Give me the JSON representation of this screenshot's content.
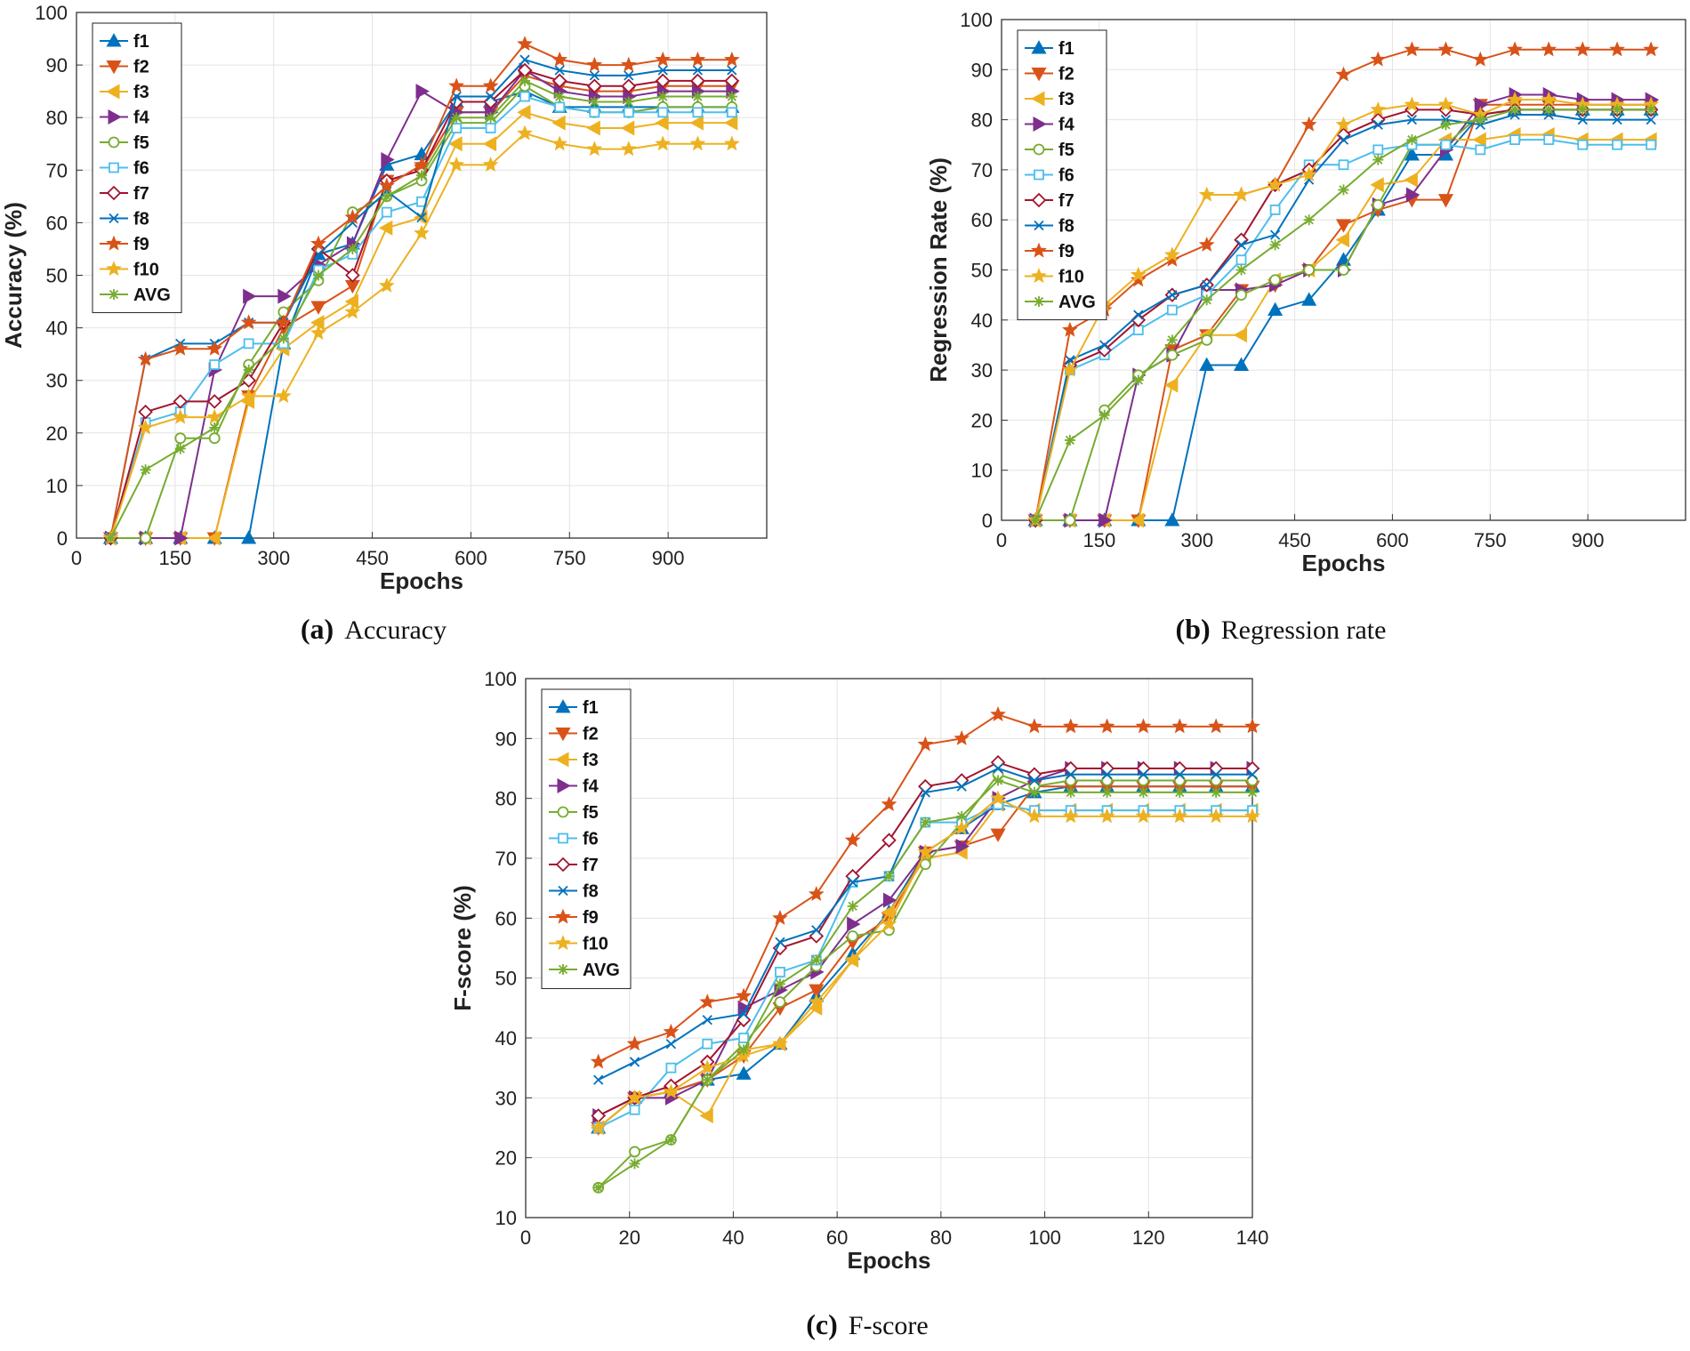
{
  "colors": {
    "f1": "#0072BD",
    "f2": "#D95319",
    "f3": "#EDB120",
    "f4": "#7E2F8E",
    "f5": "#77AC30",
    "f6": "#4DBEEE",
    "f7": "#A2142F",
    "f8": "#0072BD",
    "f9": "#D95319",
    "f10": "#EDB120",
    "AVG": "#77AC30"
  },
  "markers": {
    "f1": "tri-up",
    "f2": "tri-down",
    "f3": "tri-left",
    "f4": "tri-right",
    "f5": "circle",
    "f6": "square",
    "f7": "diamond",
    "f8": "cross",
    "f9": "star",
    "f10": "star",
    "AVG": "asterisk"
  },
  "chart_data": [
    {
      "id": "a",
      "type": "line",
      "caption_label": "(a)",
      "caption_text": "Accuracy",
      "xlabel": "Epochs",
      "ylabel": "Accuracy (%)",
      "xlim": [
        0,
        1050
      ],
      "ylim": [
        0,
        100
      ],
      "xticks": [
        0,
        150,
        300,
        450,
        600,
        750,
        900
      ],
      "yticks": [
        0,
        10,
        20,
        30,
        40,
        50,
        60,
        70,
        80,
        90,
        100
      ],
      "legend_position": "top-left",
      "x": [
        52,
        105,
        158,
        210,
        262,
        315,
        368,
        420,
        472,
        525,
        578,
        630,
        682,
        735,
        788,
        840,
        892,
        945,
        997
      ],
      "series": [
        {
          "name": "f1",
          "values": [
            0,
            0,
            0,
            0,
            0,
            37,
            54,
            56,
            71,
            73,
            83,
            83,
            85,
            82,
            82,
            82,
            82,
            82,
            82
          ]
        },
        {
          "name": "f2",
          "values": [
            0,
            0,
            0,
            0,
            27,
            40,
            44,
            48,
            68,
            70,
            81,
            81,
            88,
            86,
            85,
            85,
            86,
            86,
            86
          ]
        },
        {
          "name": "f3",
          "values": [
            0,
            0,
            0,
            0,
            26,
            36,
            41,
            45,
            59,
            61,
            75,
            75,
            81,
            79,
            78,
            78,
            79,
            79,
            79
          ]
        },
        {
          "name": "f4",
          "values": [
            0,
            0,
            0,
            32,
            46,
            46,
            52,
            56,
            72,
            85,
            81,
            81,
            89,
            85,
            84,
            84,
            85,
            85,
            85
          ]
        },
        {
          "name": "f5",
          "values": [
            0,
            0,
            19,
            19,
            33,
            43,
            49,
            62,
            65,
            68,
            79,
            79,
            86,
            82,
            81,
            81,
            82,
            82,
            82
          ]
        },
        {
          "name": "f6",
          "values": [
            0,
            22,
            24,
            33,
            37,
            37,
            51,
            54,
            62,
            64,
            78,
            78,
            84,
            82,
            81,
            81,
            81,
            81,
            81
          ]
        },
        {
          "name": "f7",
          "values": [
            0,
            24,
            26,
            26,
            30,
            41,
            55,
            50,
            68,
            70,
            83,
            83,
            89,
            87,
            86,
            86,
            87,
            87,
            87
          ]
        },
        {
          "name": "f8",
          "values": [
            0,
            34,
            37,
            37,
            41,
            41,
            54,
            60,
            66,
            61,
            84,
            84,
            91,
            89,
            88,
            88,
            89,
            89,
            89
          ]
        },
        {
          "name": "f9",
          "values": [
            0,
            34,
            36,
            36,
            41,
            41,
            56,
            61,
            67,
            71,
            86,
            86,
            94,
            91,
            90,
            90,
            91,
            91,
            91
          ]
        },
        {
          "name": "f10",
          "values": [
            0,
            21,
            23,
            23,
            27,
            27,
            39,
            43,
            48,
            58,
            71,
            71,
            77,
            75,
            74,
            74,
            75,
            75,
            75
          ]
        },
        {
          "name": "AVG",
          "values": [
            0,
            13,
            17,
            21,
            32,
            38,
            50,
            55,
            65,
            69,
            80,
            80,
            87,
            84,
            83,
            83,
            84,
            84,
            84
          ]
        }
      ]
    },
    {
      "id": "b",
      "type": "line",
      "caption_label": "(b)",
      "caption_text": "Regression rate",
      "xlabel": "Epochs",
      "ylabel": "Regression Rate (%)",
      "xlim": [
        0,
        1050
      ],
      "ylim": [
        0,
        100
      ],
      "xticks": [
        0,
        150,
        300,
        450,
        600,
        750,
        900
      ],
      "yticks": [
        0,
        10,
        20,
        30,
        40,
        50,
        60,
        70,
        80,
        90,
        100
      ],
      "legend_position": "top-left",
      "x": [
        52,
        105,
        158,
        210,
        262,
        315,
        368,
        420,
        472,
        525,
        578,
        630,
        682,
        735,
        788,
        840,
        892,
        945,
        997
      ],
      "series": [
        {
          "name": "f1",
          "values": [
            0,
            0,
            0,
            0,
            0,
            31,
            31,
            42,
            44,
            52,
            62,
            73,
            73,
            81,
            82,
            82,
            82,
            82,
            82
          ]
        },
        {
          "name": "f2",
          "values": [
            0,
            0,
            0,
            0,
            34,
            37,
            46,
            47,
            50,
            59,
            62,
            64,
            64,
            83,
            83,
            83,
            83,
            83,
            83
          ]
        },
        {
          "name": "f3",
          "values": [
            0,
            0,
            0,
            0,
            27,
            37,
            37,
            48,
            50,
            56,
            67,
            68,
            76,
            76,
            77,
            77,
            76,
            76,
            76
          ]
        },
        {
          "name": "f4",
          "values": [
            0,
            0,
            0,
            29,
            33,
            46,
            46,
            47,
            50,
            50,
            63,
            65,
            74,
            83,
            85,
            85,
            84,
            84,
            84
          ]
        },
        {
          "name": "f5",
          "values": [
            0,
            0,
            22,
            29,
            33,
            36,
            45,
            48,
            50,
            50,
            63,
            75,
            75,
            81,
            82,
            82,
            82,
            82,
            82
          ]
        },
        {
          "name": "f6",
          "values": [
            0,
            30,
            33,
            38,
            42,
            45,
            52,
            62,
            71,
            71,
            74,
            75,
            75,
            74,
            76,
            76,
            75,
            75,
            75
          ]
        },
        {
          "name": "f7",
          "values": [
            0,
            31,
            34,
            40,
            45,
            47,
            56,
            67,
            70,
            77,
            80,
            82,
            82,
            81,
            82,
            82,
            82,
            82,
            82
          ]
        },
        {
          "name": "f8",
          "values": [
            0,
            32,
            35,
            41,
            45,
            47,
            55,
            57,
            68,
            76,
            79,
            80,
            80,
            79,
            81,
            81,
            80,
            80,
            80
          ]
        },
        {
          "name": "f9",
          "values": [
            0,
            38,
            42,
            48,
            52,
            55,
            65,
            67,
            79,
            89,
            92,
            94,
            94,
            92,
            94,
            94,
            94,
            94,
            94
          ]
        },
        {
          "name": "f10",
          "values": [
            0,
            30,
            43,
            49,
            53,
            65,
            65,
            67,
            69,
            79,
            82,
            83,
            83,
            81,
            84,
            84,
            83,
            83,
            83
          ]
        },
        {
          "name": "AVG",
          "values": [
            0,
            16,
            21,
            28,
            36,
            44,
            50,
            55,
            60,
            66,
            72,
            76,
            79,
            80,
            82,
            82,
            82,
            82,
            82
          ]
        }
      ]
    },
    {
      "id": "c",
      "type": "line",
      "caption_label": "(c)",
      "caption_text": "F-score",
      "xlabel": "Epochs",
      "ylabel": "F-score (%)",
      "xlim": [
        0,
        140
      ],
      "ylim": [
        10,
        100
      ],
      "xticks": [
        0,
        20,
        40,
        60,
        80,
        100,
        120,
        140
      ],
      "yticks": [
        10,
        20,
        30,
        40,
        50,
        60,
        70,
        80,
        90,
        100
      ],
      "legend_position": "top-left",
      "x": [
        14,
        21,
        28,
        35,
        42,
        49,
        56,
        63,
        70,
        77,
        84,
        91,
        98,
        105,
        112,
        119,
        126,
        133,
        140
      ],
      "series": [
        {
          "name": "f1",
          "values": [
            25,
            30,
            31,
            33,
            34,
            39,
            47,
            54,
            61,
            71,
            75,
            79,
            81,
            82,
            82,
            82,
            82,
            82,
            82
          ]
        },
        {
          "name": "f2",
          "values": [
            25,
            30,
            31,
            33,
            37,
            45,
            48,
            56,
            60,
            71,
            72,
            74,
            82,
            82,
            82,
            82,
            82,
            82,
            82
          ]
        },
        {
          "name": "f3",
          "values": [
            25,
            30,
            31,
            27,
            38,
            39,
            45,
            53,
            61,
            70,
            71,
            79,
            78,
            78,
            78,
            78,
            78,
            78,
            78
          ]
        },
        {
          "name": "f4",
          "values": [
            27,
            30,
            30,
            33,
            45,
            48,
            51,
            59,
            63,
            71,
            72,
            80,
            83,
            85,
            85,
            85,
            85,
            85,
            85
          ]
        },
        {
          "name": "f5",
          "values": [
            15,
            21,
            23,
            33,
            39,
            46,
            52,
            57,
            58,
            69,
            76,
            84,
            82,
            83,
            83,
            83,
            83,
            83,
            83
          ]
        },
        {
          "name": "f6",
          "values": [
            25,
            28,
            35,
            39,
            40,
            51,
            53,
            66,
            67,
            76,
            76,
            79,
            78,
            78,
            78,
            78,
            78,
            78,
            78
          ]
        },
        {
          "name": "f7",
          "values": [
            27,
            30,
            32,
            36,
            43,
            55,
            57,
            67,
            73,
            82,
            83,
            86,
            84,
            85,
            85,
            85,
            85,
            85,
            85
          ]
        },
        {
          "name": "f8",
          "values": [
            33,
            36,
            39,
            43,
            44,
            56,
            58,
            66,
            67,
            81,
            82,
            85,
            83,
            84,
            84,
            84,
            84,
            84,
            84
          ]
        },
        {
          "name": "f9",
          "values": [
            36,
            39,
            41,
            46,
            47,
            60,
            64,
            73,
            79,
            89,
            90,
            94,
            92,
            92,
            92,
            92,
            92,
            92,
            92
          ]
        },
        {
          "name": "f10",
          "values": [
            25,
            30,
            31,
            35,
            37,
            39,
            46,
            53,
            59,
            71,
            75,
            80,
            77,
            77,
            77,
            77,
            77,
            77,
            77
          ]
        },
        {
          "name": "AVG",
          "values": [
            15,
            19,
            23,
            33,
            38,
            49,
            53,
            62,
            67,
            76,
            77,
            83,
            81,
            81,
            81,
            81,
            81,
            81,
            81
          ]
        }
      ]
    }
  ]
}
